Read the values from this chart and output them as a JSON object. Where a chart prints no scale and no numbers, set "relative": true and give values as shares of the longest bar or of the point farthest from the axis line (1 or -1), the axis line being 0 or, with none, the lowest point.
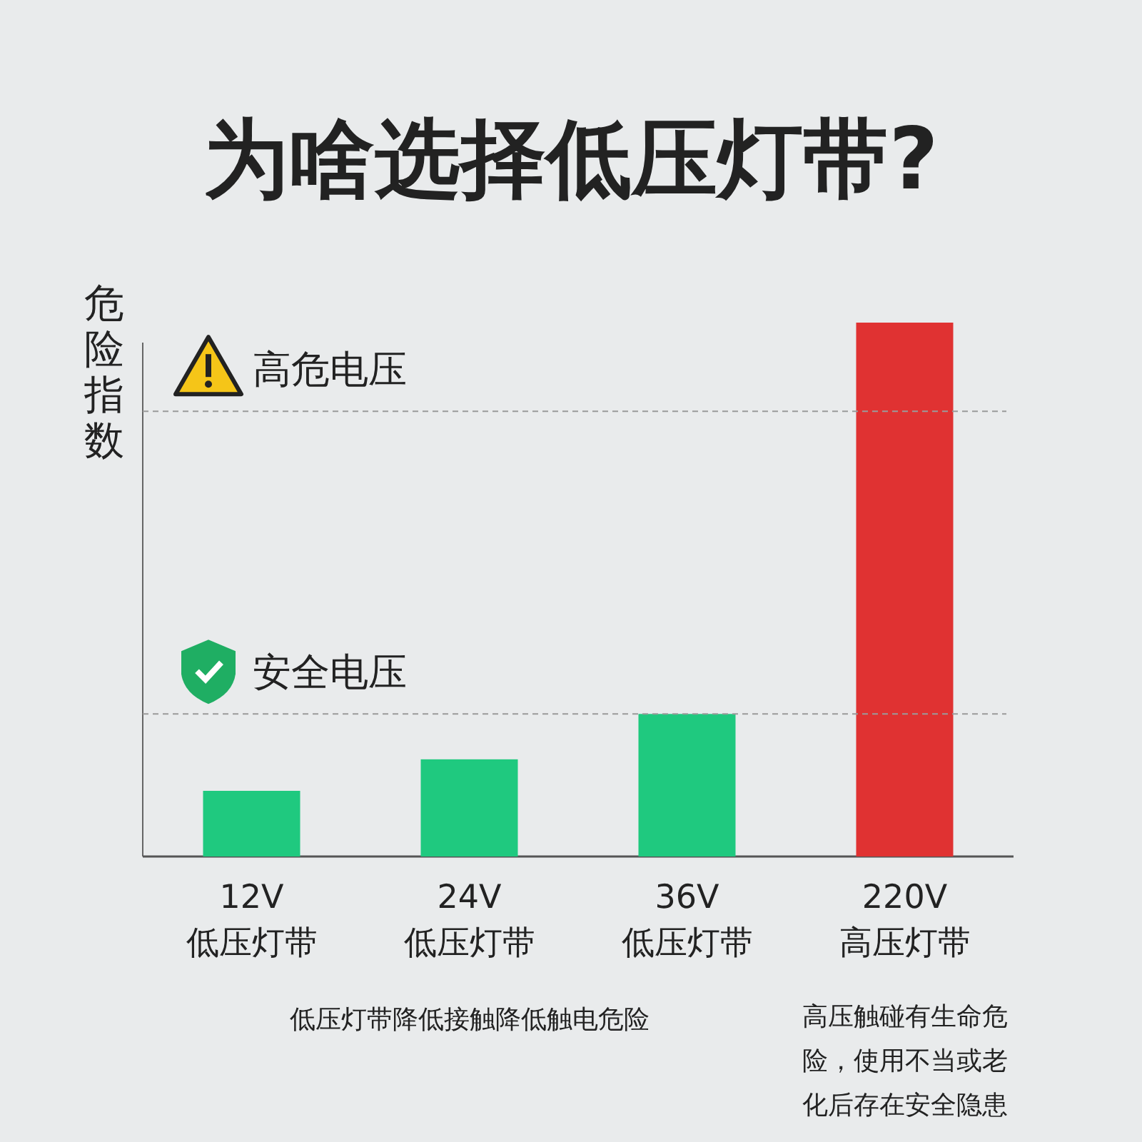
{
  "chart_data": {
    "type": "bar",
    "title": "为啥选择低压灯带?",
    "ylabel": "危险指数",
    "relative": true,
    "categories": [
      "12V\n低压灯带",
      "24V\n低压灯带",
      "36V\n低压灯带",
      "220V\n高压灯带"
    ],
    "values": [
      0.123,
      0.182,
      0.267,
      1
    ],
    "colors": [
      "#1fc97f",
      "#1fc97f",
      "#1fc97f",
      "#e03232"
    ],
    "ref_lines": [
      {
        "axis": "y",
        "value": 0.834,
        "label": "高危电压",
        "color": "#9a9a9a",
        "line_style": "dashed"
      },
      {
        "axis": "y",
        "value": 0.267,
        "label": "安全电压",
        "color": "#9a9a9a",
        "line_style": "dashed"
      }
    ],
    "annotations": [
      "低压灯带降低接触降低触电危险",
      "高压触碰有生命危险，使用不当或老化后存在安全隐患"
    ]
  }
}
